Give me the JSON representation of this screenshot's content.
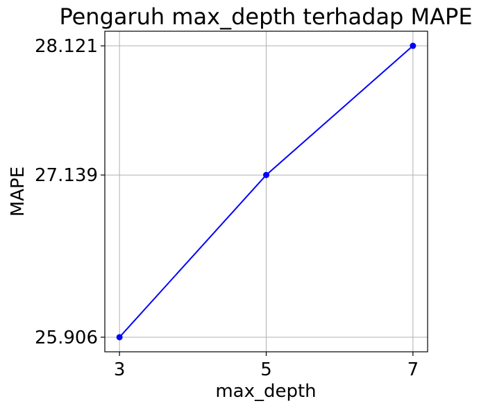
{
  "chart_data": {
    "type": "line",
    "title": "Pengaruh max_depth terhadap MAPE",
    "xlabel": "max_depth",
    "ylabel": "MAPE",
    "x": [
      3,
      5,
      7
    ],
    "xticks": [
      "3",
      "5",
      "7"
    ],
    "yticks": [
      "25.906",
      "27.139",
      "28.121"
    ],
    "series": [
      {
        "values": [
          25.906,
          27.139,
          28.121
        ],
        "color": "#0000ff",
        "marker": "circle"
      }
    ],
    "xlim": [
      2.8,
      7.2
    ],
    "ylim": [
      25.795,
      28.232
    ],
    "grid": true
  }
}
